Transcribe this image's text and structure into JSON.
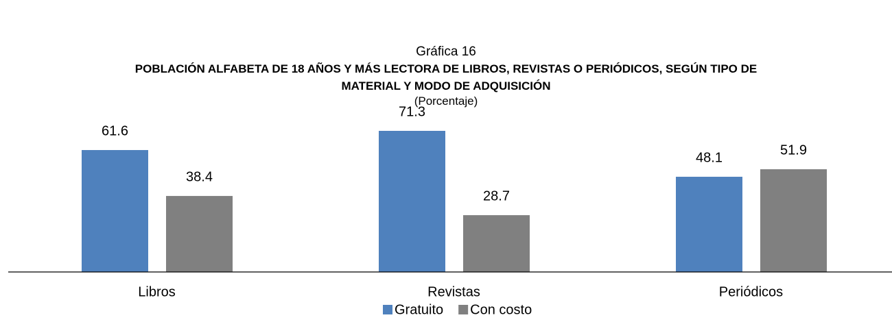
{
  "chart_data": {
    "type": "bar",
    "kicker": "Gráfica 16",
    "title": "POBLACIÓN ALFABETA DE 18 AÑOS Y MÁS LECTORA DE LIBROS, REVISTAS O PERIÓDICOS, SEGÚN TIPO DE MATERIAL Y MODO DE ADQUISICIÓN",
    "subtitle": "(Porcentaje)",
    "categories": [
      "Libros",
      "Revistas",
      "Periódicos"
    ],
    "series": [
      {
        "name": "Gratuito",
        "color": "#4f81bd",
        "values": [
          61.6,
          71.3,
          48.1
        ]
      },
      {
        "name": "Con costo",
        "color": "#808080",
        "values": [
          38.4,
          28.7,
          51.9
        ]
      }
    ],
    "legend": "bottom"
  }
}
